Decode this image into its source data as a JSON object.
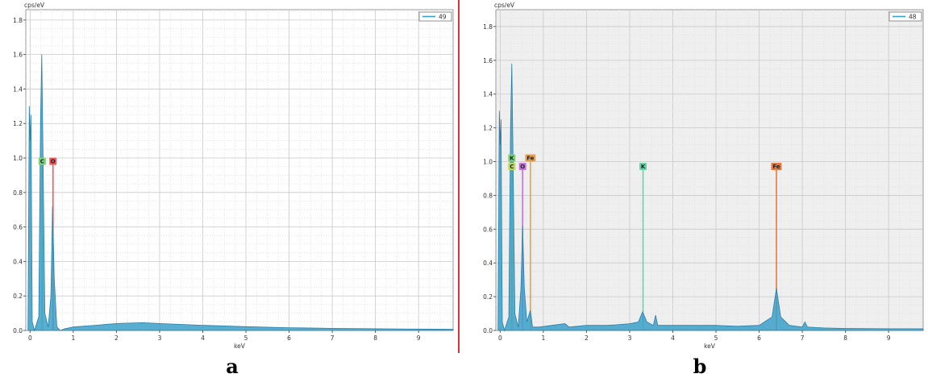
{
  "chart_data": [
    {
      "type": "line",
      "caption": "a",
      "ylabel": "cps/eV",
      "xlabel": "keV",
      "legend": "49",
      "legend_position": "top-right",
      "xlim": [
        -0.1,
        9.8
      ],
      "ylim": [
        0,
        1.86
      ],
      "xticks": [
        0,
        1,
        2,
        3,
        4,
        5,
        6,
        7,
        8,
        9
      ],
      "yticks": [
        0.0,
        0.2,
        0.4,
        0.6,
        0.8,
        1.0,
        1.2,
        1.4,
        1.6,
        1.8
      ],
      "grid": true,
      "background": "#ffffff",
      "series_color": "#3aa0c8",
      "spectrum": [
        [
          -0.05,
          0
        ],
        [
          -0.02,
          1.3
        ],
        [
          0.0,
          1.1
        ],
        [
          0.02,
          1.25
        ],
        [
          0.05,
          0.05
        ],
        [
          0.1,
          0
        ],
        [
          0.2,
          0.08
        ],
        [
          0.24,
          1.2
        ],
        [
          0.27,
          1.6
        ],
        [
          0.3,
          1.0
        ],
        [
          0.34,
          0.1
        ],
        [
          0.42,
          0.02
        ],
        [
          0.48,
          0.2
        ],
        [
          0.52,
          0.72
        ],
        [
          0.56,
          0.3
        ],
        [
          0.62,
          0.02
        ],
        [
          0.7,
          0
        ],
        [
          0.8,
          0.01
        ],
        [
          1.0,
          0.02
        ],
        [
          1.5,
          0.03
        ],
        [
          2.0,
          0.04
        ],
        [
          2.6,
          0.045
        ],
        [
          3.0,
          0.04
        ],
        [
          3.5,
          0.035
        ],
        [
          4.0,
          0.03
        ],
        [
          5.0,
          0.022
        ],
        [
          6.0,
          0.016
        ],
        [
          7.0,
          0.012
        ],
        [
          8.0,
          0.01
        ],
        [
          9.0,
          0.008
        ],
        [
          9.8,
          0.007
        ]
      ],
      "markers": [
        {
          "label": "C",
          "x": 0.28,
          "y": 0.96,
          "color": "#7ed07e"
        },
        {
          "label": "O",
          "x": 0.53,
          "y": 0.96,
          "color": "#ee5a5a"
        }
      ]
    },
    {
      "type": "line",
      "caption": "b",
      "ylabel": "cps/eV",
      "xlabel": "keV",
      "legend": "48",
      "legend_position": "top-right",
      "xlim": [
        -0.1,
        9.8
      ],
      "ylim": [
        0,
        1.9
      ],
      "xticks": [
        0,
        1,
        2,
        3,
        4,
        5,
        6,
        7,
        8,
        9
      ],
      "yticks": [
        0.0,
        0.2,
        0.4,
        0.6,
        0.8,
        1.0,
        1.2,
        1.4,
        1.6,
        1.8
      ],
      "grid": true,
      "background": "#efefef",
      "series_color": "#3aa0c8",
      "spectrum": [
        [
          -0.05,
          0
        ],
        [
          -0.02,
          1.3
        ],
        [
          0.0,
          1.1
        ],
        [
          0.02,
          1.25
        ],
        [
          0.05,
          0.05
        ],
        [
          0.1,
          0
        ],
        [
          0.2,
          0.08
        ],
        [
          0.24,
          1.2
        ],
        [
          0.27,
          1.58
        ],
        [
          0.3,
          1.0
        ],
        [
          0.34,
          0.1
        ],
        [
          0.42,
          0.02
        ],
        [
          0.48,
          0.25
        ],
        [
          0.52,
          0.62
        ],
        [
          0.56,
          0.25
        ],
        [
          0.62,
          0.05
        ],
        [
          0.7,
          0.12
        ],
        [
          0.75,
          0.02
        ],
        [
          0.9,
          0.02
        ],
        [
          1.2,
          0.03
        ],
        [
          1.5,
          0.04
        ],
        [
          1.6,
          0.02
        ],
        [
          2.0,
          0.03
        ],
        [
          2.5,
          0.03
        ],
        [
          3.0,
          0.04
        ],
        [
          3.2,
          0.05
        ],
        [
          3.3,
          0.11
        ],
        [
          3.4,
          0.05
        ],
        [
          3.55,
          0.03
        ],
        [
          3.6,
          0.09
        ],
        [
          3.65,
          0.03
        ],
        [
          4.0,
          0.03
        ],
        [
          5.0,
          0.03
        ],
        [
          5.5,
          0.025
        ],
        [
          6.0,
          0.03
        ],
        [
          6.3,
          0.08
        ],
        [
          6.4,
          0.25
        ],
        [
          6.5,
          0.08
        ],
        [
          6.7,
          0.03
        ],
        [
          7.0,
          0.02
        ],
        [
          7.06,
          0.05
        ],
        [
          7.12,
          0.02
        ],
        [
          7.5,
          0.015
        ],
        [
          8.0,
          0.012
        ],
        [
          9.0,
          0.01
        ],
        [
          9.8,
          0.01
        ]
      ],
      "markers": [
        {
          "label": "K",
          "x": 0.27,
          "y": 1.0,
          "color": "#7ed07e"
        },
        {
          "label": "C",
          "x": 0.27,
          "y": 0.95,
          "color": "#b8d860"
        },
        {
          "label": "O",
          "x": 0.52,
          "y": 0.95,
          "color": "#c872e0"
        },
        {
          "label": "Fe",
          "x": 0.7,
          "y": 1.0,
          "color": "#e8a050"
        },
        {
          "label": "K",
          "x": 3.31,
          "y": 0.95,
          "color": "#5fd8a8"
        },
        {
          "label": "Fe",
          "x": 6.4,
          "y": 0.95,
          "color": "#e07a40"
        }
      ]
    }
  ]
}
